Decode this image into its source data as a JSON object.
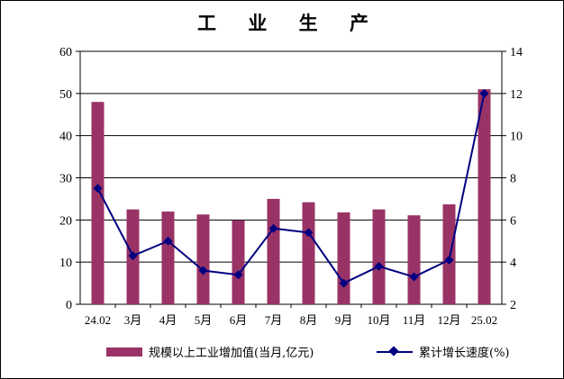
{
  "chart_data": {
    "type": "bar+line",
    "title": "工 业 生 产",
    "categories": [
      "24.02",
      "3月",
      "4月",
      "5月",
      "6月",
      "7月",
      "8月",
      "9月",
      "10月",
      "11月",
      "12月",
      "25.02"
    ],
    "series": [
      {
        "name": "规模以上工业增加值(当月,亿元)",
        "type": "bar",
        "axis": "left",
        "color": "#993366",
        "values": [
          48.0,
          22.5,
          22.0,
          21.3,
          19.9,
          25.0,
          24.2,
          21.8,
          22.5,
          21.1,
          23.7,
          51.0
        ]
      },
      {
        "name": "累计增长速度(%)",
        "type": "line",
        "axis": "right",
        "color": "#000080",
        "values": [
          7.5,
          4.3,
          5.0,
          3.6,
          3.4,
          5.6,
          5.4,
          3.0,
          3.8,
          3.3,
          4.1,
          12.0
        ]
      }
    ],
    "y_left": {
      "min": 0,
      "max": 60,
      "ticks": [
        0,
        10,
        20,
        30,
        40,
        50,
        60
      ]
    },
    "y_right": {
      "min": 2,
      "max": 14,
      "ticks": [
        2,
        4,
        6,
        8,
        10,
        12,
        14
      ]
    },
    "grid": true,
    "legend_position": "bottom"
  }
}
